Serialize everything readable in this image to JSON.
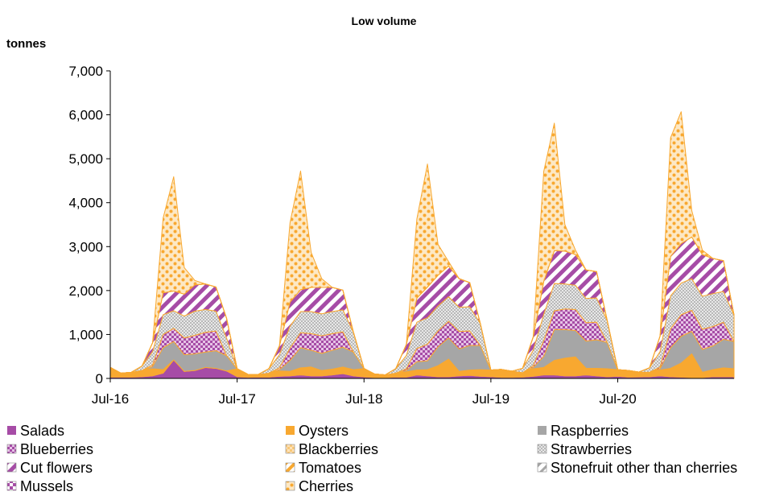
{
  "chart_data": {
    "type": "area",
    "stacked": true,
    "title": "Low volume",
    "ylabel": "tonnes",
    "xlabel": "",
    "ylim": [
      0,
      7000
    ],
    "yticks": [
      0,
      1000,
      2000,
      3000,
      4000,
      5000,
      6000,
      7000
    ],
    "ytick_labels": [
      "0",
      "1,000",
      "2,000",
      "3,000",
      "4,000",
      "5,000",
      "6,000",
      "7,000"
    ],
    "x_tick_labels": [
      "Jul-16",
      "Jul-17",
      "Jul-18",
      "Jul-19",
      "Jul-20"
    ],
    "x_tick_indices": [
      0,
      12,
      24,
      36,
      48
    ],
    "x_count": 60,
    "grid": false,
    "legend_position": "bottom",
    "colors": {
      "purple": "#a64ca6",
      "orange": "#f8a830",
      "grey": "#a6a6a6",
      "outline": "#f8a830"
    },
    "series": [
      {
        "name": "Salads",
        "values": [
          30,
          30,
          30,
          40,
          60,
          120,
          420,
          160,
          180,
          250,
          230,
          170,
          40,
          25,
          30,
          30,
          50,
          60,
          80,
          60,
          60,
          80,
          110,
          60,
          35,
          20,
          20,
          30,
          30,
          80,
          60,
          40,
          40,
          60,
          70,
          50,
          40,
          25,
          25,
          30,
          50,
          80,
          80,
          60,
          60,
          80,
          60,
          40,
          50,
          30,
          35,
          40,
          60,
          40,
          30,
          20,
          20,
          40,
          40,
          40
        ]
      },
      {
        "name": "Oysters",
        "values": [
          220,
          90,
          110,
          140,
          160,
          80,
          0,
          0,
          0,
          0,
          0,
          0,
          180,
          70,
          60,
          90,
          120,
          100,
          160,
          200,
          120,
          130,
          150,
          140,
          190,
          80,
          60,
          90,
          120,
          110,
          140,
          250,
          400,
          100,
          120,
          150,
          150,
          180,
          140,
          100,
          170,
          170,
          330,
          400,
          430,
          150,
          170,
          180,
          150,
          150,
          110,
          100,
          130,
          190,
          320,
          540,
          120,
          160,
          200,
          180
        ]
      },
      {
        "name": "Raspberries",
        "values": [
          0,
          0,
          0,
          0,
          50,
          500,
          420,
          380,
          380,
          350,
          400,
          350,
          0,
          0,
          0,
          0,
          30,
          250,
          460,
          380,
          390,
          430,
          450,
          400,
          0,
          0,
          0,
          0,
          30,
          190,
          200,
          430,
          480,
          510,
          560,
          550,
          0,
          0,
          0,
          0,
          30,
          250,
          700,
          650,
          600,
          620,
          650,
          600,
          0,
          0,
          0,
          0,
          30,
          470,
          610,
          510,
          520,
          540,
          650,
          620
        ]
      },
      {
        "name": "Blueberries",
        "values": [
          0,
          0,
          0,
          0,
          40,
          300,
          300,
          380,
          420,
          450,
          450,
          0,
          0,
          0,
          0,
          0,
          40,
          280,
          340,
          380,
          400,
          380,
          350,
          0,
          0,
          0,
          0,
          0,
          40,
          300,
          380,
          360,
          380,
          400,
          330,
          0,
          0,
          0,
          0,
          0,
          40,
          360,
          430,
          470,
          480,
          420,
          400,
          0,
          0,
          0,
          0,
          0,
          40,
          430,
          490,
          480,
          460,
          440,
          390,
          0
        ]
      },
      {
        "name": "Blackberries",
        "values": [
          0,
          0,
          0,
          0,
          0,
          0,
          0,
          0,
          0,
          0,
          0,
          0,
          0,
          0,
          0,
          0,
          0,
          0,
          0,
          0,
          0,
          0,
          0,
          0,
          0,
          0,
          0,
          0,
          0,
          0,
          0,
          0,
          0,
          0,
          0,
          0,
          0,
          0,
          0,
          0,
          0,
          0,
          0,
          0,
          0,
          0,
          0,
          0,
          0,
          0,
          0,
          0,
          0,
          0,
          0,
          0,
          0,
          0,
          0,
          0
        ]
      },
      {
        "name": "Strawberries",
        "values": [
          0,
          0,
          0,
          100,
          300,
          450,
          400,
          500,
          550,
          520,
          450,
          400,
          0,
          0,
          0,
          100,
          300,
          500,
          480,
          500,
          500,
          500,
          500,
          450,
          0,
          0,
          0,
          100,
          300,
          600,
          600,
          570,
          560,
          550,
          550,
          500,
          0,
          0,
          0,
          100,
          350,
          600,
          620,
          570,
          550,
          550,
          550,
          500,
          0,
          0,
          0,
          100,
          350,
          750,
          720,
          720,
          750,
          750,
          700,
          600
        ]
      },
      {
        "name": "Cut flowers",
        "values": [
          0,
          0,
          0,
          0,
          200,
          500,
          450,
          500,
          600,
          580,
          550,
          450,
          0,
          0,
          0,
          0,
          200,
          550,
          500,
          550,
          600,
          550,
          450,
          0,
          0,
          0,
          0,
          0,
          250,
          550,
          700,
          700,
          700,
          650,
          550,
          0,
          0,
          0,
          0,
          0,
          300,
          750,
          750,
          750,
          700,
          650,
          600,
          0,
          0,
          0,
          0,
          0,
          350,
          900,
          900,
          950,
          950,
          800,
          700,
          0
        ]
      },
      {
        "name": "Tomatoes",
        "values": [
          0,
          0,
          0,
          0,
          0,
          0,
          0,
          0,
          0,
          0,
          0,
          0,
          0,
          0,
          0,
          0,
          0,
          0,
          0,
          0,
          0,
          0,
          0,
          0,
          0,
          0,
          0,
          0,
          0,
          0,
          0,
          0,
          0,
          0,
          0,
          0,
          0,
          0,
          0,
          0,
          0,
          0,
          0,
          0,
          0,
          0,
          0,
          0,
          0,
          0,
          0,
          0,
          0,
          0,
          0,
          0,
          0,
          0,
          0,
          0
        ]
      },
      {
        "name": "Stonefruit other than cherries",
        "values": [
          0,
          0,
          0,
          0,
          0,
          0,
          0,
          0,
          0,
          0,
          0,
          0,
          0,
          0,
          0,
          0,
          0,
          0,
          0,
          0,
          0,
          0,
          0,
          0,
          0,
          0,
          0,
          0,
          0,
          0,
          0,
          0,
          0,
          0,
          0,
          0,
          0,
          0,
          0,
          0,
          0,
          0,
          0,
          0,
          0,
          0,
          0,
          0,
          0,
          0,
          0,
          0,
          0,
          0,
          0,
          0,
          0,
          0,
          0,
          0
        ]
      },
      {
        "name": "Mussels",
        "values": [
          0,
          0,
          0,
          0,
          0,
          0,
          0,
          0,
          0,
          0,
          0,
          0,
          0,
          0,
          0,
          0,
          0,
          0,
          0,
          0,
          0,
          0,
          0,
          0,
          0,
          0,
          0,
          0,
          0,
          0,
          0,
          0,
          0,
          0,
          0,
          0,
          0,
          0,
          0,
          0,
          0,
          0,
          0,
          0,
          0,
          0,
          0,
          0,
          0,
          0,
          0,
          0,
          0,
          0,
          0,
          0,
          0,
          0,
          0,
          0
        ]
      },
      {
        "name": "Cherries",
        "values": [
          0,
          0,
          0,
          0,
          0,
          1700,
          2600,
          600,
          100,
          0,
          0,
          0,
          0,
          0,
          0,
          0,
          0,
          1800,
          2700,
          800,
          200,
          0,
          0,
          0,
          0,
          0,
          0,
          0,
          0,
          1800,
          2800,
          700,
          100,
          0,
          0,
          0,
          0,
          0,
          0,
          0,
          0,
          2500,
          2900,
          600,
          100,
          0,
          0,
          0,
          0,
          0,
          0,
          0,
          0,
          2700,
          3000,
          600,
          100,
          0,
          0,
          0
        ]
      }
    ],
    "legend_order": [
      "Salads",
      "Oysters",
      "Raspberries",
      "Blueberries",
      "Blackberries",
      "Strawberries",
      "Cut flowers",
      "Tomatoes",
      "Stonefruit other than cherries",
      "Mussels",
      "Cherries"
    ]
  }
}
